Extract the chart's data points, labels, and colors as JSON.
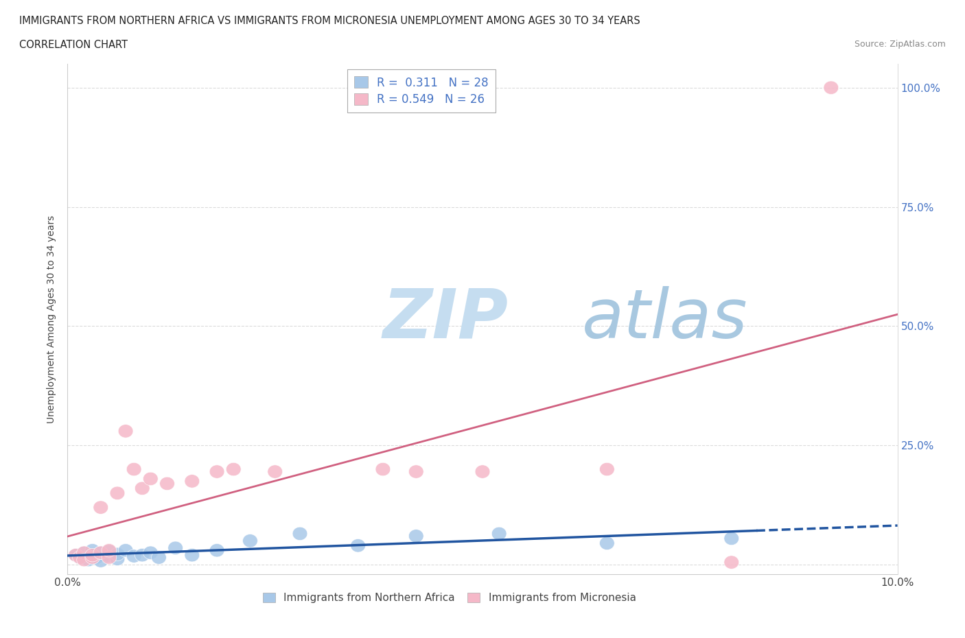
{
  "title_line1": "IMMIGRANTS FROM NORTHERN AFRICA VS IMMIGRANTS FROM MICRONESIA UNEMPLOYMENT AMONG AGES 30 TO 34 YEARS",
  "title_line2": "CORRELATION CHART",
  "source": "Source: ZipAtlas.com",
  "ylabel": "Unemployment Among Ages 30 to 34 years",
  "xlim": [
    0.0,
    0.1
  ],
  "ylim": [
    0.0,
    1.05
  ],
  "xtick_labels": [
    "0.0%",
    "10.0%"
  ],
  "ytick_labels": [
    "",
    "25.0%",
    "50.0%",
    "75.0%",
    "100.0%"
  ],
  "legend_R1": "0.311",
  "legend_N1": "28",
  "legend_R2": "0.549",
  "legend_N2": "26",
  "color_blue": "#a8c8e8",
  "color_pink": "#f5b8c8",
  "color_blue_line": "#2155a0",
  "color_pink_line": "#d06080",
  "color_blue_text": "#4472c4",
  "grid_color": "#cccccc",
  "background_color": "#ffffff",
  "na_x": [
    0.001,
    0.0015,
    0.002,
    0.0025,
    0.003,
    0.003,
    0.0035,
    0.004,
    0.004,
    0.005,
    0.005,
    0.006,
    0.006,
    0.007,
    0.008,
    0.009,
    0.01,
    0.011,
    0.013,
    0.015,
    0.018,
    0.022,
    0.028,
    0.035,
    0.042,
    0.052,
    0.065,
    0.08
  ],
  "na_y": [
    0.02,
    0.015,
    0.025,
    0.01,
    0.02,
    0.03,
    0.015,
    0.008,
    0.025,
    0.018,
    0.028,
    0.012,
    0.022,
    0.03,
    0.018,
    0.02,
    0.025,
    0.015,
    0.035,
    0.02,
    0.03,
    0.05,
    0.065,
    0.04,
    0.06,
    0.065,
    0.045,
    0.055
  ],
  "mic_x": [
    0.001,
    0.0015,
    0.002,
    0.002,
    0.003,
    0.003,
    0.004,
    0.004,
    0.005,
    0.005,
    0.006,
    0.007,
    0.008,
    0.009,
    0.01,
    0.012,
    0.015,
    0.018,
    0.02,
    0.025,
    0.038,
    0.042,
    0.05,
    0.065,
    0.08,
    0.092
  ],
  "mic_y": [
    0.02,
    0.015,
    0.025,
    0.01,
    0.015,
    0.02,
    0.12,
    0.025,
    0.015,
    0.03,
    0.15,
    0.28,
    0.2,
    0.16,
    0.18,
    0.17,
    0.175,
    0.195,
    0.2,
    0.195,
    0.2,
    0.195,
    0.195,
    0.2,
    0.005,
    1.0
  ],
  "na_line_solid_end": 0.083,
  "na_line_dash_end": 0.1,
  "watermark_zip_color": "#c8dff0",
  "watermark_atlas_color": "#b0cce0"
}
